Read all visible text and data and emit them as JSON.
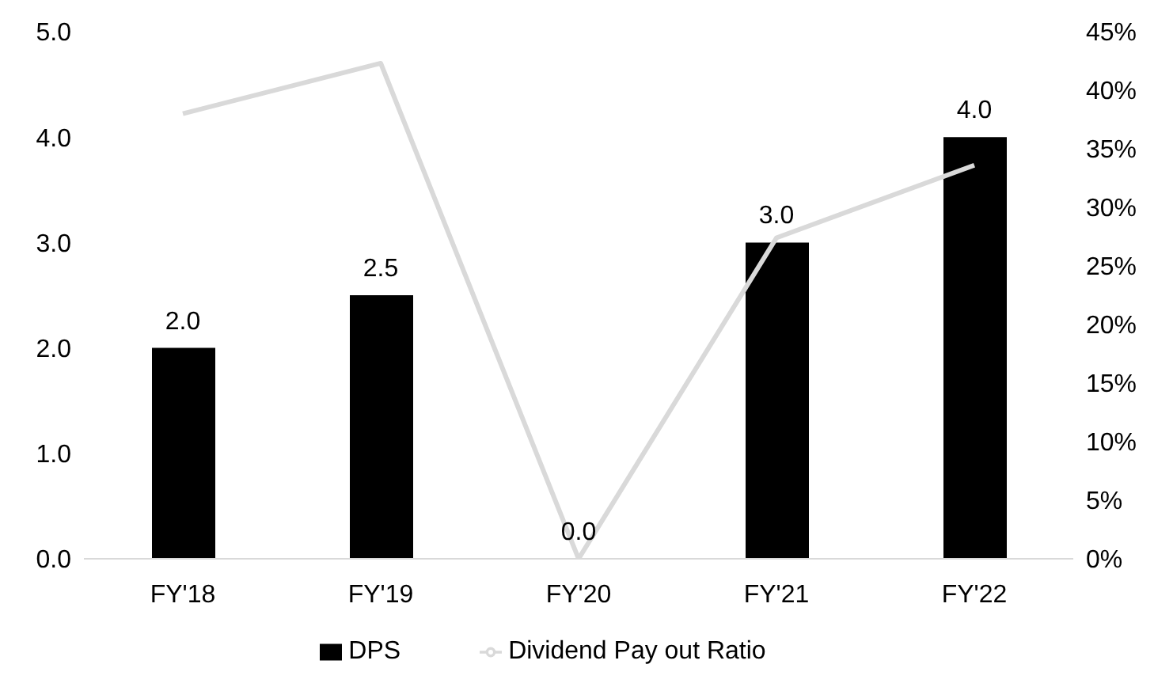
{
  "chart_data": {
    "type": "bar",
    "categories": [
      "FY'18",
      "FY'19",
      "FY'20",
      "FY'21",
      "FY'22"
    ],
    "series": [
      {
        "name": "DPS",
        "color": "#000000",
        "values": [
          2.0,
          2.5,
          0.0,
          3.0,
          4.0
        ],
        "value_labels": [
          "2.0",
          "2.5",
          "0.0",
          "3.0",
          "4.0"
        ]
      },
      {
        "name": "Dividend Pay out Ratio",
        "type": "line",
        "axis": "y2",
        "color": "#d9d9d9",
        "values": [
          38,
          42.3,
          0,
          27.4,
          33.6
        ]
      }
    ],
    "ylim": [
      0,
      5
    ],
    "yticks": [
      {
        "value": 0,
        "label": "0.0"
      },
      {
        "value": 1,
        "label": "1.0"
      },
      {
        "value": 2,
        "label": "2.0"
      },
      {
        "value": 3,
        "label": "3.0"
      },
      {
        "value": 4,
        "label": "4.0"
      },
      {
        "value": 5,
        "label": "5.0"
      }
    ],
    "y2lim": [
      0,
      45
    ],
    "y2ticks": [
      {
        "value": 0,
        "label": "0%"
      },
      {
        "value": 5,
        "label": "5%"
      },
      {
        "value": 10,
        "label": "10%"
      },
      {
        "value": 15,
        "label": "15%"
      },
      {
        "value": 20,
        "label": "20%"
      },
      {
        "value": 25,
        "label": "25%"
      },
      {
        "value": 30,
        "label": "30%"
      },
      {
        "value": 35,
        "label": "35%"
      },
      {
        "value": 40,
        "label": "40%"
      },
      {
        "value": 45,
        "label": "45%"
      }
    ],
    "grid": false,
    "legend": "bottom",
    "marker": "none"
  }
}
